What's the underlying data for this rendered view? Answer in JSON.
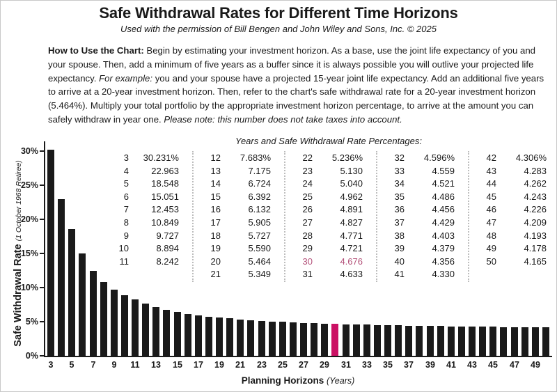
{
  "header": {
    "title": "Safe Withdrawal Rates for Different Time Horizons",
    "subtitle": "Used with the permission of Bill Bengen and John Wiley and Sons, Inc. © 2025"
  },
  "instructions": {
    "lead_bold": "How to Use the Chart: ",
    "body_1": "Begin by estimating your investment horizon. As a base, use the joint life expectancy of you and your spouse. Then, add a minimum of five years as a buffer since it is always possible you will outlive your projected life expectancy. ",
    "example_label": "For example: ",
    "body_2": "you and your spouse have a projected 15-year joint life expectancy. Add an additional five years to arrive at a 20-year investment horizon. Then, refer to the chart's safe withdrawal rate for a 20-year investment horizon (5.464%). Multiply your total portfolio by the appropriate investment horizon percentage, to arrive at the amount you can safely withdraw in year one. ",
    "note_italic": "Please note: this number does not take taxes into account."
  },
  "table": {
    "heading": "Years and Safe Withdrawal Rate Percentages:",
    "column_year_ranges": [
      [
        3,
        11
      ],
      [
        12,
        21
      ],
      [
        22,
        31
      ],
      [
        32,
        41
      ],
      [
        42,
        50
      ]
    ],
    "percent_sign_on_first_row": true,
    "highlight_year": 30
  },
  "chart_data": {
    "type": "bar",
    "title": "Safe Withdrawal Rates for Different Time Horizons",
    "xlabel": "Planning Horizons (Years)",
    "ylabel": "Safe Withdrawal Rate (1 October 1968 Retiree)",
    "x": [
      3,
      4,
      5,
      6,
      7,
      8,
      9,
      10,
      11,
      12,
      13,
      14,
      15,
      16,
      17,
      18,
      19,
      20,
      21,
      22,
      23,
      24,
      25,
      26,
      27,
      28,
      29,
      30,
      31,
      32,
      33,
      34,
      35,
      36,
      37,
      38,
      39,
      40,
      41,
      42,
      43,
      44,
      45,
      46,
      47,
      48,
      49,
      50
    ],
    "values": [
      30.231,
      22.963,
      18.548,
      15.051,
      12.453,
      10.849,
      9.727,
      8.894,
      8.242,
      7.683,
      7.175,
      6.724,
      6.392,
      6.132,
      5.905,
      5.727,
      5.59,
      5.464,
      5.349,
      5.236,
      5.13,
      5.04,
      4.962,
      4.891,
      4.827,
      4.771,
      4.721,
      4.676,
      4.633,
      4.596,
      4.559,
      4.521,
      4.486,
      4.456,
      4.429,
      4.403,
      4.379,
      4.356,
      4.33,
      4.306,
      4.283,
      4.262,
      4.243,
      4.226,
      4.209,
      4.193,
      4.178,
      4.165
    ],
    "highlight_x": 30,
    "ylim": [
      0,
      32
    ],
    "y_ticks_percent": [
      0,
      5,
      10,
      15,
      20,
      25,
      30
    ],
    "x_tick_labels": [
      3,
      5,
      7,
      9,
      11,
      13,
      15,
      17,
      19,
      21,
      23,
      25,
      27,
      29,
      31,
      33,
      35,
      37,
      39,
      41,
      43,
      45,
      47,
      49
    ],
    "grid": false,
    "legend": "none"
  },
  "axes": {
    "y_title_bold": "Safe Withdrawal Rate ",
    "y_title_italic": "(1 October 1968 Retiree)",
    "x_title_bold": "Planning Horizons ",
    "x_title_italic": "(Years)"
  },
  "colors": {
    "bar": "#1a1a1a",
    "highlight_bar": "#cb1164",
    "highlight_text": "#b4527a",
    "ink": "#1a1a1a",
    "separator": "#bdbdbd"
  }
}
